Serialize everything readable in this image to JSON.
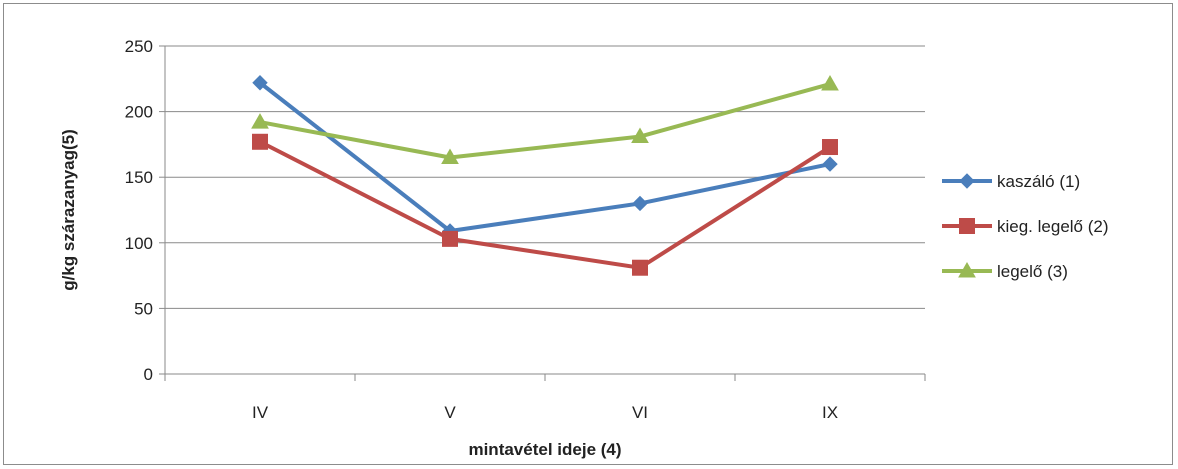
{
  "chart_data": {
    "type": "line",
    "categories": [
      "IV",
      "V",
      "VI",
      "IX"
    ],
    "series": [
      {
        "name": "kaszáló (1)",
        "values": [
          222,
          109,
          130,
          160
        ],
        "color": "#4a7ebb",
        "marker": "diamond"
      },
      {
        "name": "kieg. legelő (2)",
        "values": [
          177,
          103,
          81,
          173
        ],
        "color": "#be4b48",
        "marker": "square"
      },
      {
        "name": "legelő (3)",
        "values": [
          192,
          165,
          181,
          221
        ],
        "color": "#98b954",
        "marker": "triangle"
      }
    ],
    "xlabel": "mintavétel ideje (4)",
    "ylabel": "g/kg szárazanyag(5)",
    "ylim": [
      0,
      250
    ],
    "yticks": [
      0,
      50,
      100,
      150,
      200,
      250
    ],
    "grid": true,
    "legend": "right"
  }
}
